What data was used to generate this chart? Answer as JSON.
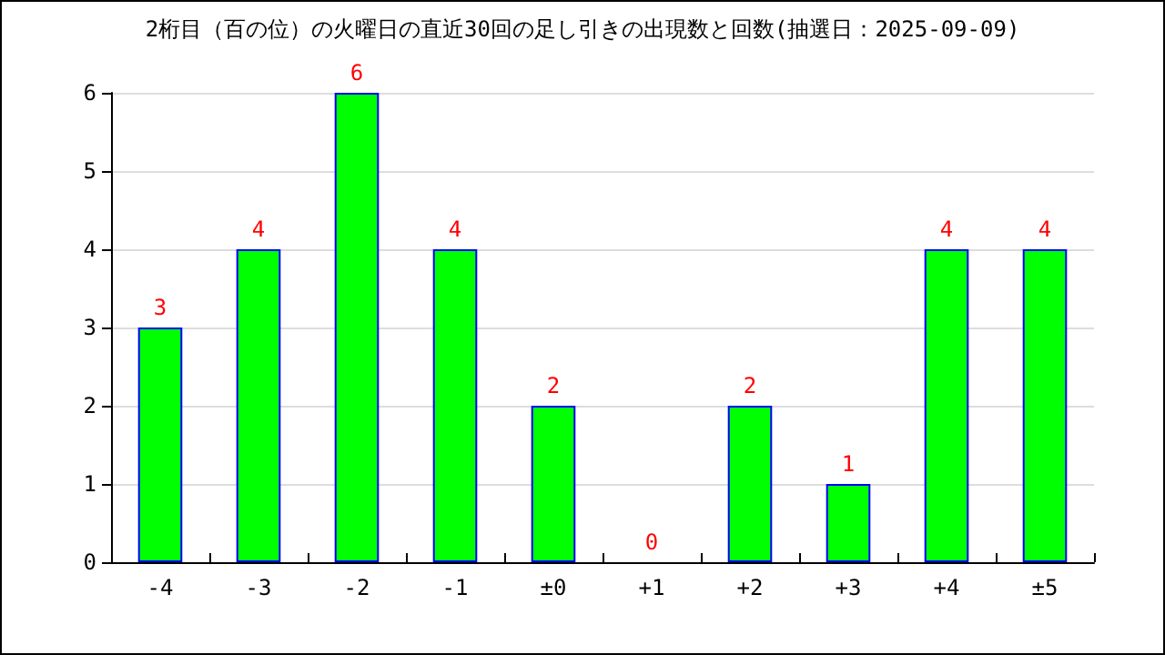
{
  "chart_data": {
    "type": "bar",
    "title": "2桁目（百の位）の火曜日の直近30回の足し引きの出現数と回数(抽選日：2025-09-09)",
    "categories": [
      "-4",
      "-3",
      "-2",
      "-1",
      "±0",
      "+1",
      "+2",
      "+3",
      "+4",
      "±5"
    ],
    "values": [
      3,
      4,
      6,
      4,
      2,
      0,
      2,
      1,
      4,
      4
    ],
    "color": "#00ff00",
    "ylim": [
      0,
      6
    ],
    "yticks": [
      0,
      1,
      2,
      3,
      4,
      5,
      6
    ],
    "grid": "y",
    "data_labels": true
  }
}
